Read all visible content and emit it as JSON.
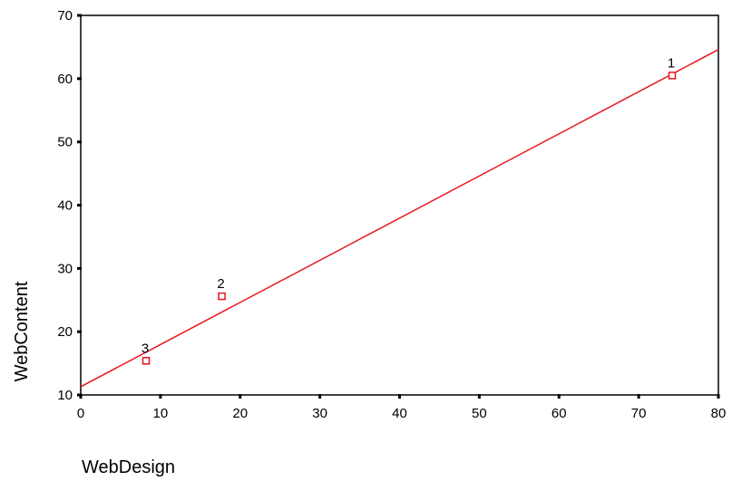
{
  "chart_data": {
    "type": "scatter",
    "xlabel": "WebDesign",
    "ylabel": "WebContent",
    "xlim": [
      0,
      80
    ],
    "ylim": [
      10,
      70
    ],
    "xticks": [
      "0",
      "10",
      "20",
      "30",
      "40",
      "50",
      "60",
      "70",
      "80"
    ],
    "yticks": [
      "10",
      "20",
      "30",
      "40",
      "50",
      "60",
      "70"
    ],
    "grid": false,
    "legend": "none",
    "points": [
      {
        "label": "1",
        "x": 74.2,
        "y": 60.5
      },
      {
        "label": "2",
        "x": 17.7,
        "y": 25.6
      },
      {
        "label": "3",
        "x": 8.2,
        "y": 15.4
      }
    ],
    "fit_line": {
      "x": [
        0,
        80
      ],
      "y": [
        11.3,
        64.6
      ]
    },
    "colors": {
      "marker": "#e8141c",
      "fit_line": "#e8141c",
      "axis": "#000000"
    }
  }
}
